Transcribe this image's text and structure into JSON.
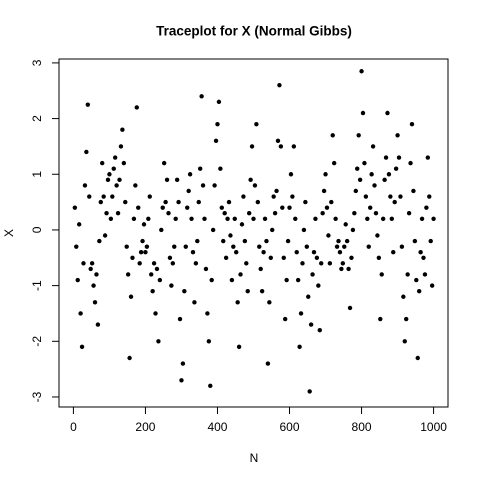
{
  "chart_data": {
    "type": "scatter",
    "title": "Traceplot for X (Normal Gibbs)",
    "x_label": "N",
    "y_label": "X",
    "xlim": [
      -40,
      1040
    ],
    "ylim": [
      -3.18,
      3.07
    ],
    "xticks": [
      0,
      200,
      400,
      600,
      800,
      1000
    ],
    "yticks": [
      -3,
      -2,
      -1,
      0,
      1,
      2,
      3
    ],
    "color": "#000000",
    "x": [
      4,
      8,
      12,
      16,
      20,
      24,
      28,
      32,
      36,
      40,
      44,
      48,
      52,
      56,
      60,
      64,
      68,
      72,
      76,
      80,
      84,
      88,
      92,
      96,
      100,
      104,
      108,
      112,
      116,
      120,
      124,
      128,
      132,
      136,
      140,
      144,
      148,
      152,
      156,
      160,
      164,
      168,
      172,
      176,
      180,
      184,
      188,
      192,
      196,
      200,
      204,
      208,
      212,
      216,
      220,
      224,
      228,
      232,
      236,
      240,
      244,
      248,
      252,
      256,
      260,
      264,
      268,
      272,
      276,
      280,
      284,
      288,
      292,
      296,
      300,
      304,
      308,
      312,
      316,
      320,
      324,
      328,
      332,
      336,
      340,
      344,
      348,
      352,
      356,
      360,
      364,
      368,
      372,
      376,
      380,
      384,
      388,
      392,
      396,
      400,
      404,
      408,
      412,
      416,
      420,
      424,
      428,
      432,
      436,
      440,
      444,
      448,
      452,
      456,
      460,
      464,
      468,
      472,
      476,
      480,
      484,
      488,
      492,
      496,
      500,
      504,
      508,
      512,
      516,
      520,
      524,
      528,
      532,
      536,
      540,
      544,
      548,
      552,
      556,
      560,
      564,
      568,
      572,
      576,
      580,
      584,
      588,
      592,
      596,
      600,
      604,
      608,
      612,
      616,
      620,
      624,
      628,
      632,
      636,
      640,
      644,
      648,
      652,
      656,
      660,
      664,
      668,
      672,
      676,
      680,
      684,
      688,
      692,
      696,
      700,
      704,
      708,
      712,
      716,
      720,
      724,
      728,
      732,
      736,
      740,
      744,
      748,
      752,
      756,
      760,
      764,
      768,
      772,
      776,
      780,
      784,
      788,
      792,
      796,
      800,
      804,
      808,
      812,
      816,
      820,
      824,
      828,
      832,
      836,
      840,
      844,
      848,
      852,
      856,
      860,
      864,
      868,
      872,
      876,
      880,
      884,
      888,
      892,
      896,
      900,
      904,
      908,
      912,
      916,
      920,
      924,
      928,
      932,
      936,
      940,
      944,
      948,
      952,
      956,
      960,
      964,
      968,
      972,
      976,
      980,
      984,
      988,
      992,
      996,
      1000
    ],
    "values": [
      0.4,
      -0.3,
      -0.9,
      0.1,
      -1.5,
      -2.1,
      -0.6,
      0.8,
      1.4,
      2.25,
      0.6,
      -0.7,
      -0.6,
      -1.0,
      -1.3,
      -0.8,
      -1.7,
      -0.2,
      0.5,
      1.2,
      0.6,
      -0.1,
      0.3,
      0.9,
      1.0,
      0.2,
      0.6,
      1.1,
      1.3,
      0.8,
      0.3,
      0.9,
      1.5,
      1.8,
      1.2,
      0.5,
      -0.3,
      -0.8,
      -2.3,
      -1.2,
      -0.5,
      0.2,
      0.8,
      2.2,
      0.4,
      -0.6,
      -0.4,
      -0.2,
      0.1,
      -0.4,
      -0.3,
      0.2,
      0.6,
      -0.8,
      -1.1,
      -0.6,
      -1.5,
      -0.7,
      -2.0,
      -0.9,
      0.0,
      0.4,
      1.2,
      0.5,
      0.9,
      0.3,
      -0.5,
      -1.0,
      -0.6,
      -0.3,
      0.2,
      0.9,
      0.5,
      -1.6,
      -2.7,
      -2.4,
      -1.1,
      -0.3,
      0.4,
      0.7,
      1.0,
      0.2,
      -0.4,
      -1.3,
      -0.6,
      -0.2,
      0.5,
      1.1,
      2.4,
      0.8,
      0.2,
      -0.7,
      -1.5,
      -2.0,
      -2.8,
      -0.9,
      0.0,
      0.8,
      1.6,
      1.9,
      2.3,
      1.1,
      0.4,
      -0.2,
      0.3,
      -0.5,
      0.2,
      0.5,
      -0.1,
      -0.9,
      -0.3,
      0.2,
      -0.4,
      -1.3,
      -2.1,
      -0.8,
      0.1,
      0.6,
      -0.2,
      -0.6,
      -1.1,
      0.3,
      0.9,
      1.5,
      0.2,
      0.8,
      1.9,
      0.5,
      -0.3,
      -0.7,
      -1.1,
      -0.4,
      0.2,
      -0.2,
      -2.4,
      -1.3,
      -0.5,
      0.0,
      0.6,
      0.3,
      0.7,
      1.6,
      2.6,
      1.5,
      0.4,
      -0.5,
      -1.6,
      -0.9,
      -0.2,
      0.4,
      1.0,
      0.6,
      1.5,
      0.2,
      -0.4,
      -0.9,
      -2.1,
      -1.5,
      -0.6,
      0.0,
      0.5,
      -0.3,
      -1.2,
      -2.9,
      -1.7,
      -0.8,
      -0.4,
      0.2,
      -0.5,
      -1.0,
      -1.8,
      -0.6,
      0.3,
      0.7,
      1.0,
      0.4,
      -0.1,
      -0.6,
      0.5,
      1.7,
      1.2,
      0.2,
      -0.3,
      -0.2,
      -0.4,
      -0.7,
      -0.6,
      -0.3,
      0.1,
      -0.2,
      -0.7,
      -1.4,
      -0.5,
      0.0,
      0.3,
      0.7,
      1.1,
      1.7,
      0.9,
      2.85,
      2.1,
      1.2,
      0.6,
      0.2,
      -0.3,
      0.4,
      1.0,
      1.5,
      0.8,
      0.3,
      -0.1,
      -0.5,
      -1.6,
      -0.8,
      0.2,
      0.9,
      1.3,
      2.1,
      1.0,
      0.6,
      0.2,
      -0.4,
      0.5,
      1.1,
      1.7,
      1.3,
      0.6,
      -0.3,
      -1.2,
      -2.0,
      -1.6,
      -0.8,
      0.3,
      1.2,
      1.9,
      0.7,
      -0.2,
      -0.9,
      -2.3,
      -1.1,
      -0.4,
      0.2,
      -0.5,
      -0.8,
      0.4,
      1.3,
      0.6,
      -0.2,
      -1.0,
      0.2
    ]
  }
}
